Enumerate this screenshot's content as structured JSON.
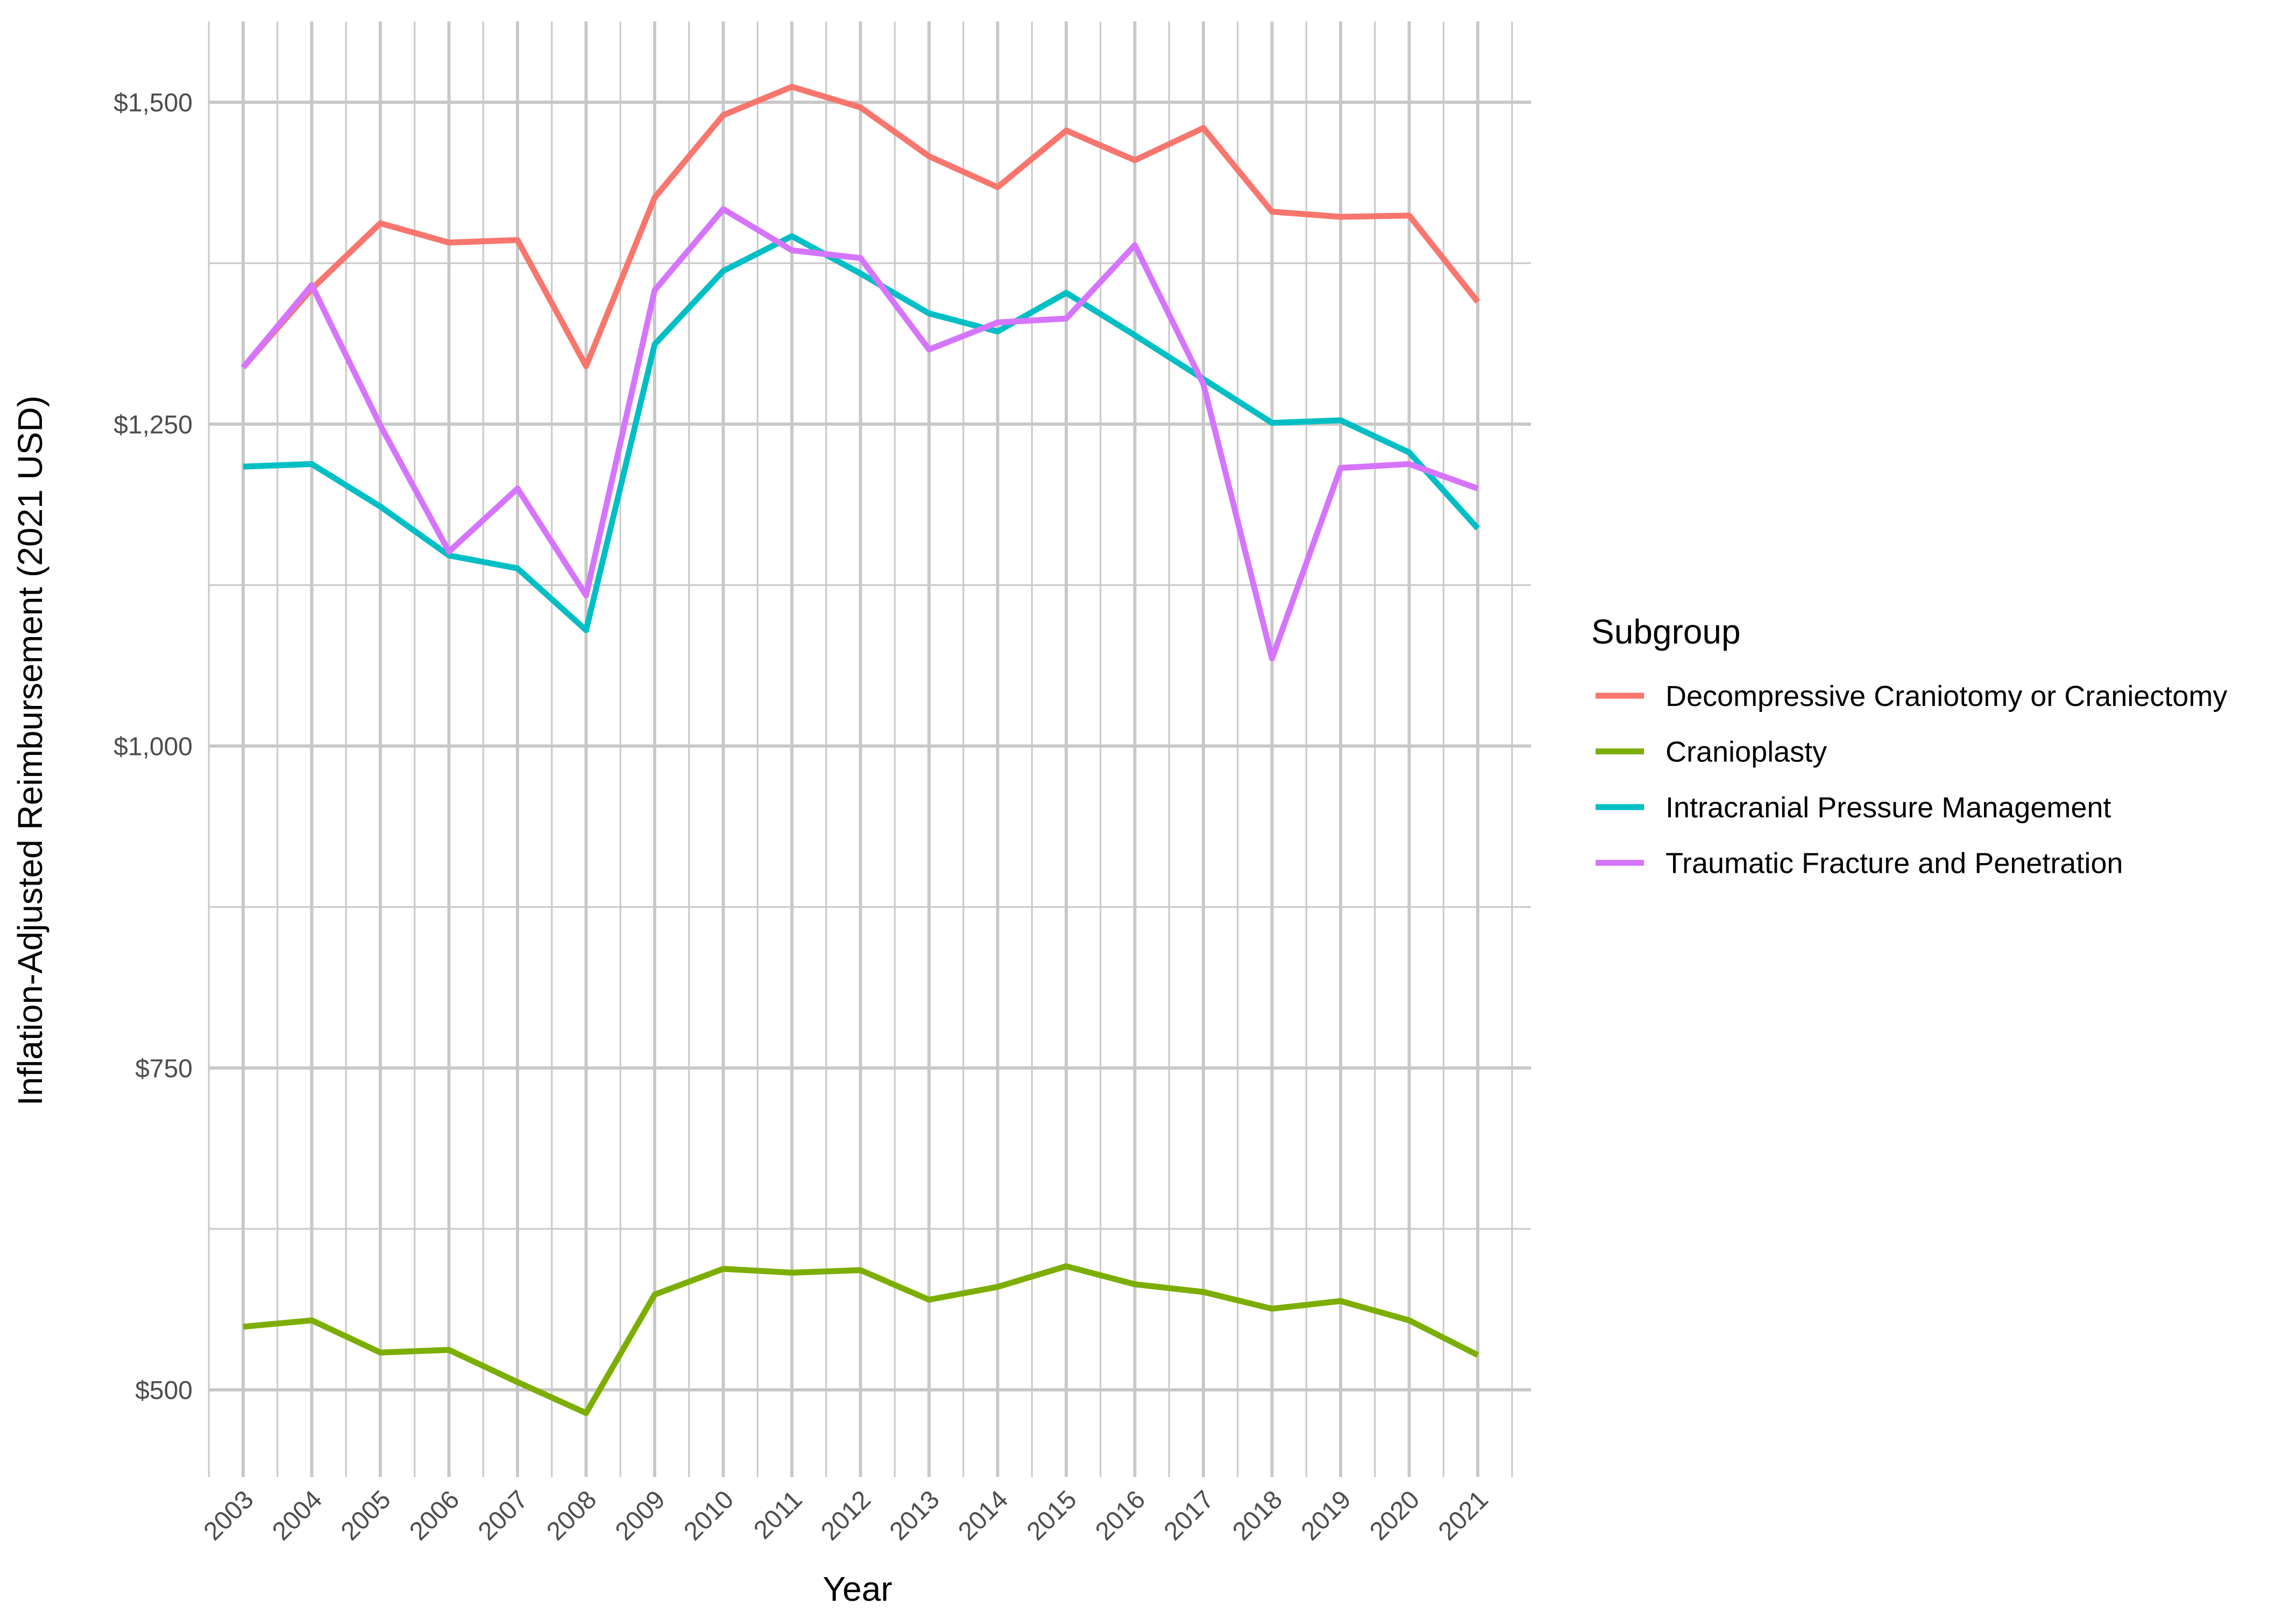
{
  "chart_data": {
    "type": "line",
    "title": "",
    "xlabel": "Year",
    "ylabel": "Inflation-Adjusted Reimbursement (2021 USD)",
    "x": [
      "2003",
      "2004",
      "2005",
      "2006",
      "2007",
      "2008",
      "2009",
      "2010",
      "2011",
      "2012",
      "2013",
      "2014",
      "2015",
      "2016",
      "2017",
      "2018",
      "2019",
      "2020",
      "2021"
    ],
    "ylim": [
      440,
      1560
    ],
    "yticks": [
      500,
      750,
      1000,
      1250,
      1500
    ],
    "ytick_labels": [
      "$500",
      "$750",
      "$1,000",
      "$1,250",
      "$1,500"
    ],
    "grid": true,
    "legend": {
      "title": "Subgroup",
      "position": "right"
    },
    "series": [
      {
        "name": "Decompressive Craniotomy or Craniectomy",
        "color": "#F8766D",
        "values": [
          1294,
          1355,
          1406,
          1391,
          1393,
          1295,
          1426,
          1490,
          1512,
          1496,
          1458,
          1434,
          1478,
          1455,
          1480,
          1415,
          1411,
          1412,
          1345
        ]
      },
      {
        "name": "Cranioplasty",
        "color": "#7CAE00",
        "values": [
          549,
          554,
          529,
          531,
          506,
          482,
          574,
          594,
          591,
          593,
          570,
          580,
          596,
          582,
          576,
          563,
          569,
          554,
          527
        ]
      },
      {
        "name": "Intracranial Pressure Management",
        "color": "#00BFC4",
        "values": [
          1217,
          1219,
          1186,
          1148,
          1138,
          1090,
          1312,
          1369,
          1396,
          1367,
          1336,
          1322,
          1352,
          1319,
          1285,
          1251,
          1253,
          1228,
          1169
        ]
      },
      {
        "name": "Traumatic Fracture and Penetration",
        "color": "#D575FE",
        "values": [
          1294,
          1358,
          1249,
          1151,
          1200,
          1117,
          1354,
          1417,
          1385,
          1379,
          1308,
          1329,
          1332,
          1389,
          1281,
          1068,
          1216,
          1219,
          1200
        ]
      }
    ]
  }
}
